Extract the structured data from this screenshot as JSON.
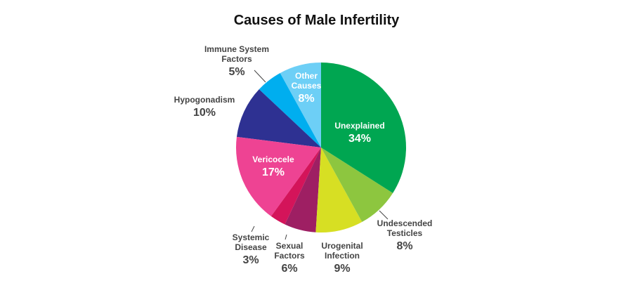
{
  "chart_data": {
    "type": "pie",
    "title": "Causes of Male Infertility",
    "categories": [
      "Unexplained",
      "Undescended Testicles",
      "Urogenital Infection",
      "Sexual Factors",
      "Systemic Disease",
      "Vericocele",
      "Hypogonadism",
      "Immune System Factors",
      "Other Causes"
    ],
    "values": [
      34,
      8,
      9,
      6,
      3,
      17,
      10,
      5,
      8
    ],
    "value_labels": [
      "34%",
      "8%",
      "9%",
      "6%",
      "3%",
      "17%",
      "10%",
      "5%",
      "8%"
    ],
    "colors": [
      "#00a651",
      "#8dc63f",
      "#d7df23",
      "#9e1f63",
      "#d4145a",
      "#ee4393",
      "#2e3192",
      "#00aeef",
      "#6dcff6"
    ]
  }
}
